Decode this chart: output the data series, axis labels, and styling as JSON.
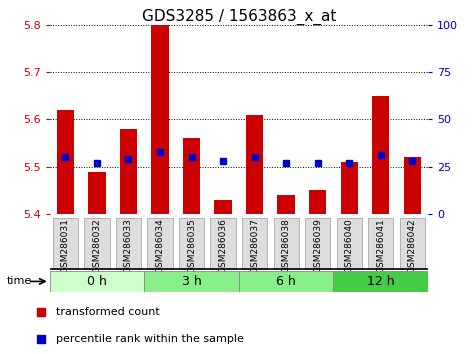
{
  "title": "GDS3285 / 1563863_x_at",
  "samples": [
    "GSM286031",
    "GSM286032",
    "GSM286033",
    "GSM286034",
    "GSM286035",
    "GSM286036",
    "GSM286037",
    "GSM286038",
    "GSM286039",
    "GSM286040",
    "GSM286041",
    "GSM286042"
  ],
  "bar_values": [
    5.62,
    5.49,
    5.58,
    5.8,
    5.56,
    5.43,
    5.61,
    5.44,
    5.45,
    5.51,
    5.65,
    5.52
  ],
  "bar_bottom": 5.4,
  "percentile_values": [
    30,
    27,
    29,
    33,
    30,
    28,
    30,
    27,
    27,
    27,
    31,
    28
  ],
  "percentile_scale_max": 100,
  "ylim": [
    5.4,
    5.8
  ],
  "yticks": [
    5.4,
    5.5,
    5.6,
    5.7,
    5.8
  ],
  "right_yticks": [
    0,
    25,
    50,
    75,
    100
  ],
  "bar_color": "#cc0000",
  "blue_color": "#0000cc",
  "group_colors": [
    "#ccffcc",
    "#88ee88",
    "#88ee88",
    "#44cc44"
  ],
  "groups": [
    {
      "label": "0 h",
      "start": 0,
      "end": 3
    },
    {
      "label": "3 h",
      "start": 3,
      "end": 6
    },
    {
      "label": "6 h",
      "start": 6,
      "end": 9
    },
    {
      "label": "12 h",
      "start": 9,
      "end": 12
    }
  ],
  "time_label": "time",
  "legend_bar_label": "transformed count",
  "legend_dot_label": "percentile rank within the sample",
  "title_fontsize": 11,
  "tick_fontsize": 8,
  "label_fontsize": 6.5,
  "group_fontsize": 9,
  "legend_fontsize": 8
}
